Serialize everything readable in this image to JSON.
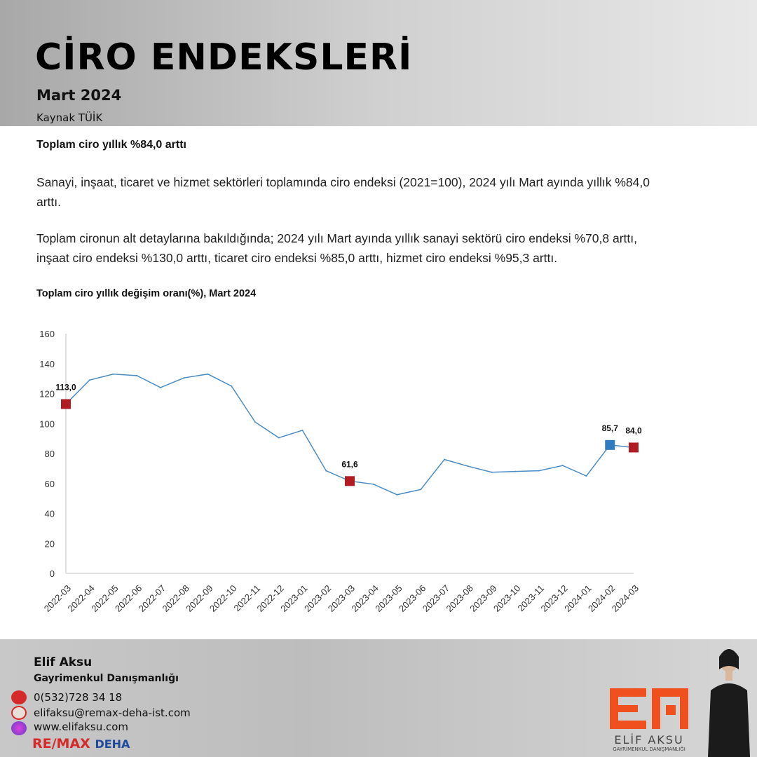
{
  "header": {
    "title": "CİRO ENDEKSLERİ",
    "subtitle": "Mart 2024",
    "source": "Kaynak TÜİK"
  },
  "body": {
    "lead": "Toplam ciro yıllık %84,0 arttı",
    "para1": "Sanayi, inşaat, ticaret ve hizmet sektörleri toplamında ciro endeksi (2021=100), 2024 yılı Mart ayında yıllık %84,0 arttı.",
    "para2": "Toplam cironun alt detaylarına bakıldığında; 2024 yılı Mart ayında yıllık sanayi sektörü ciro endeksi %70,8 arttı, inşaat ciro endeksi %130,0 arttı, ticaret ciro endeksi %85,0 arttı, hizmet ciro endeksi %95,3 arttı."
  },
  "chart_data": {
    "type": "line",
    "title": "Toplam ciro yıllık değişim oranı(%), Mart 2024",
    "categories": [
      "2022-03",
      "2022-04",
      "2022-05",
      "2022-06",
      "2022-07",
      "2022-08",
      "2022-09",
      "2022-10",
      "2022-11",
      "2022-12",
      "2023-01",
      "2023-02",
      "2023-03",
      "2023-04",
      "2023-05",
      "2023-06",
      "2023-07",
      "2023-08",
      "2023-09",
      "2023-10",
      "2023-11",
      "2023-12",
      "2024-01",
      "2024-02",
      "2024-03"
    ],
    "values": [
      113.0,
      129,
      133,
      132,
      124,
      130.5,
      133,
      125,
      101,
      90.5,
      95.5,
      68.5,
      61.6,
      59.5,
      52.5,
      56,
      76,
      71.5,
      67.5,
      68,
      68.5,
      72,
      65,
      85.7,
      84.0
    ],
    "ylim": [
      0,
      160
    ],
    "yticks": [
      0,
      20,
      40,
      60,
      80,
      100,
      120,
      140,
      160
    ],
    "highlights": [
      {
        "category": "2022-03",
        "label": "113,0",
        "color": "#b01c22"
      },
      {
        "category": "2023-03",
        "label": "61,6",
        "color": "#b01c22"
      },
      {
        "category": "2024-02",
        "label": "85,7",
        "color": "#2e7bbf"
      },
      {
        "category": "2024-03",
        "label": "84,0",
        "color": "#b01c22"
      }
    ],
    "line_color": "#4a8cc4",
    "grid": false
  },
  "footer": {
    "name": "Elif Aksu",
    "role": "Gayrimenkul Danışmanlığı",
    "phone": "0(532)728 34 18",
    "email": "elifaksu@remax-deha-ist.com",
    "web": "www.elifaksu.com",
    "brand_red": "RE/MAX",
    "brand_blue": "DEHA",
    "logo_text": "ELİF AKSU",
    "logo_sub": "GAYRİMENKUL DANIŞMANLIĞI",
    "logo_color": "#f0501e"
  }
}
